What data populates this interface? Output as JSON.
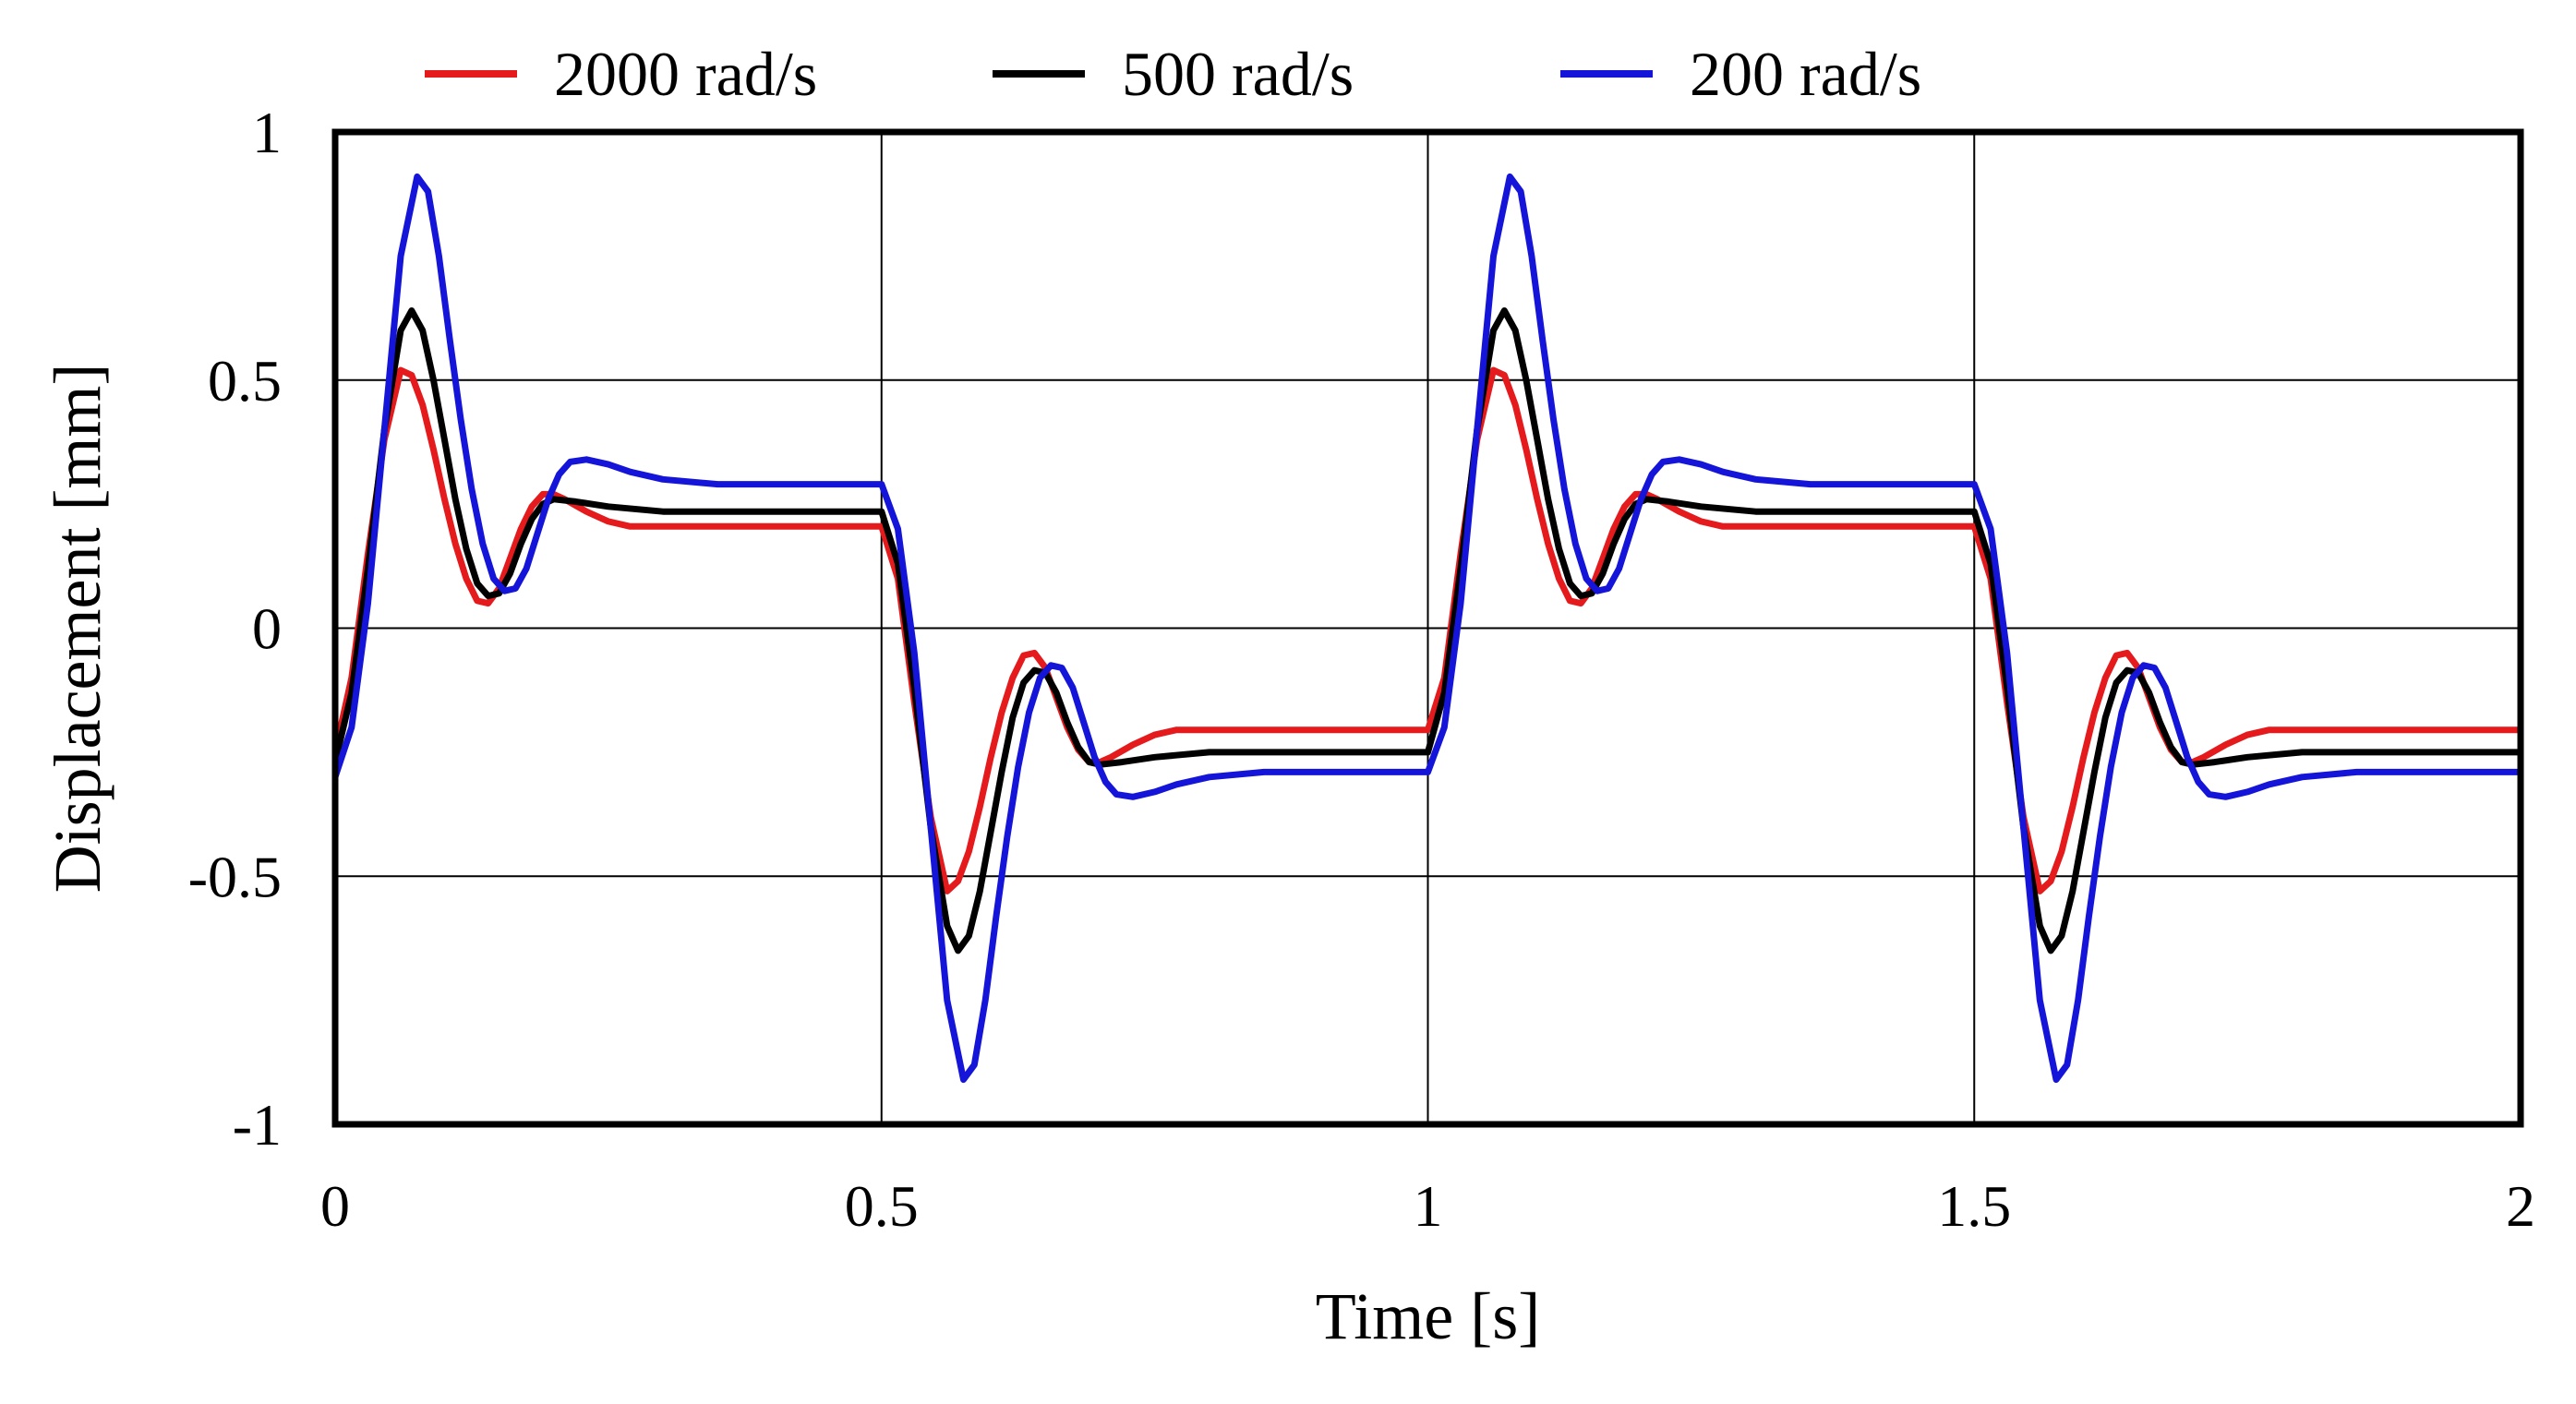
{
  "chart_data": {
    "type": "line",
    "xlabel": "Time [s]",
    "ylabel": "Displacement [mm]",
    "xlim": [
      0,
      2
    ],
    "ylim": [
      -1,
      1
    ],
    "xticks": [
      "0",
      "0.5",
      "1",
      "1.5",
      "2"
    ],
    "yticks": [
      "1",
      "0.5",
      "0",
      "-0.5",
      "-1"
    ],
    "grid": true,
    "legend": "top",
    "series": [
      {
        "name": "2000 rad/s",
        "color": "#e41a1c",
        "points": [
          [
            0,
            -0.25
          ],
          [
            0.015,
            -0.1
          ],
          [
            0.03,
            0.15
          ],
          [
            0.045,
            0.38
          ],
          [
            0.06,
            0.52
          ],
          [
            0.07,
            0.51
          ],
          [
            0.08,
            0.45
          ],
          [
            0.09,
            0.36
          ],
          [
            0.1,
            0.26
          ],
          [
            0.11,
            0.17
          ],
          [
            0.12,
            0.1
          ],
          [
            0.13,
            0.055
          ],
          [
            0.14,
            0.05
          ],
          [
            0.15,
            0.08
          ],
          [
            0.16,
            0.14
          ],
          [
            0.17,
            0.2
          ],
          [
            0.18,
            0.245
          ],
          [
            0.19,
            0.27
          ],
          [
            0.2,
            0.27
          ],
          [
            0.21,
            0.26
          ],
          [
            0.23,
            0.235
          ],
          [
            0.25,
            0.215
          ],
          [
            0.27,
            0.205
          ],
          [
            0.3,
            0.205
          ],
          [
            0.5,
            0.205
          ],
          [
            0.515,
            0.1
          ],
          [
            0.53,
            -0.15
          ],
          [
            0.545,
            -0.38
          ],
          [
            0.56,
            -0.53
          ],
          [
            0.57,
            -0.51
          ],
          [
            0.58,
            -0.45
          ],
          [
            0.59,
            -0.36
          ],
          [
            0.6,
            -0.26
          ],
          [
            0.61,
            -0.17
          ],
          [
            0.62,
            -0.1
          ],
          [
            0.63,
            -0.055
          ],
          [
            0.64,
            -0.05
          ],
          [
            0.65,
            -0.08
          ],
          [
            0.66,
            -0.14
          ],
          [
            0.67,
            -0.2
          ],
          [
            0.68,
            -0.245
          ],
          [
            0.69,
            -0.27
          ],
          [
            0.7,
            -0.27
          ],
          [
            0.71,
            -0.26
          ],
          [
            0.73,
            -0.235
          ],
          [
            0.75,
            -0.215
          ],
          [
            0.77,
            -0.205
          ],
          [
            0.8,
            -0.205
          ],
          [
            1.0,
            -0.205
          ],
          [
            1.015,
            -0.1
          ],
          [
            1.03,
            0.15
          ],
          [
            1.045,
            0.38
          ],
          [
            1.06,
            0.52
          ],
          [
            1.07,
            0.51
          ],
          [
            1.08,
            0.45
          ],
          [
            1.09,
            0.36
          ],
          [
            1.1,
            0.26
          ],
          [
            1.11,
            0.17
          ],
          [
            1.12,
            0.1
          ],
          [
            1.13,
            0.055
          ],
          [
            1.14,
            0.05
          ],
          [
            1.15,
            0.08
          ],
          [
            1.16,
            0.14
          ],
          [
            1.17,
            0.2
          ],
          [
            1.18,
            0.245
          ],
          [
            1.19,
            0.27
          ],
          [
            1.2,
            0.27
          ],
          [
            1.21,
            0.26
          ],
          [
            1.23,
            0.235
          ],
          [
            1.25,
            0.215
          ],
          [
            1.27,
            0.205
          ],
          [
            1.3,
            0.205
          ],
          [
            1.5,
            0.205
          ],
          [
            1.515,
            0.1
          ],
          [
            1.53,
            -0.15
          ],
          [
            1.545,
            -0.38
          ],
          [
            1.56,
            -0.53
          ],
          [
            1.57,
            -0.51
          ],
          [
            1.58,
            -0.45
          ],
          [
            1.59,
            -0.36
          ],
          [
            1.6,
            -0.26
          ],
          [
            1.61,
            -0.17
          ],
          [
            1.62,
            -0.1
          ],
          [
            1.63,
            -0.055
          ],
          [
            1.64,
            -0.05
          ],
          [
            1.65,
            -0.08
          ],
          [
            1.66,
            -0.14
          ],
          [
            1.67,
            -0.2
          ],
          [
            1.68,
            -0.245
          ],
          [
            1.69,
            -0.27
          ],
          [
            1.7,
            -0.27
          ],
          [
            1.71,
            -0.26
          ],
          [
            1.73,
            -0.235
          ],
          [
            1.75,
            -0.215
          ],
          [
            1.77,
            -0.205
          ],
          [
            1.8,
            -0.205
          ],
          [
            2.0,
            -0.205
          ]
        ]
      },
      {
        "name": "500 rad/s",
        "color": "#000000",
        "points": [
          [
            0,
            -0.27
          ],
          [
            0.015,
            -0.13
          ],
          [
            0.03,
            0.12
          ],
          [
            0.045,
            0.4
          ],
          [
            0.06,
            0.6
          ],
          [
            0.07,
            0.64
          ],
          [
            0.08,
            0.6
          ],
          [
            0.09,
            0.5
          ],
          [
            0.1,
            0.38
          ],
          [
            0.11,
            0.26
          ],
          [
            0.12,
            0.16
          ],
          [
            0.13,
            0.09
          ],
          [
            0.14,
            0.065
          ],
          [
            0.15,
            0.07
          ],
          [
            0.16,
            0.11
          ],
          [
            0.17,
            0.17
          ],
          [
            0.18,
            0.22
          ],
          [
            0.19,
            0.25
          ],
          [
            0.2,
            0.26
          ],
          [
            0.22,
            0.255
          ],
          [
            0.25,
            0.245
          ],
          [
            0.3,
            0.235
          ],
          [
            0.5,
            0.235
          ],
          [
            0.515,
            0.13
          ],
          [
            0.53,
            -0.12
          ],
          [
            0.545,
            -0.4
          ],
          [
            0.56,
            -0.6
          ],
          [
            0.57,
            -0.65
          ],
          [
            0.58,
            -0.62
          ],
          [
            0.59,
            -0.53
          ],
          [
            0.6,
            -0.41
          ],
          [
            0.61,
            -0.29
          ],
          [
            0.62,
            -0.18
          ],
          [
            0.63,
            -0.11
          ],
          [
            0.64,
            -0.085
          ],
          [
            0.65,
            -0.09
          ],
          [
            0.66,
            -0.13
          ],
          [
            0.67,
            -0.19
          ],
          [
            0.68,
            -0.24
          ],
          [
            0.69,
            -0.27
          ],
          [
            0.7,
            -0.275
          ],
          [
            0.72,
            -0.27
          ],
          [
            0.75,
            -0.26
          ],
          [
            0.8,
            -0.25
          ],
          [
            1.0,
            -0.25
          ],
          [
            1.015,
            -0.13
          ],
          [
            1.03,
            0.12
          ],
          [
            1.045,
            0.4
          ],
          [
            1.06,
            0.6
          ],
          [
            1.07,
            0.64
          ],
          [
            1.08,
            0.6
          ],
          [
            1.09,
            0.5
          ],
          [
            1.1,
            0.38
          ],
          [
            1.11,
            0.26
          ],
          [
            1.12,
            0.16
          ],
          [
            1.13,
            0.09
          ],
          [
            1.14,
            0.065
          ],
          [
            1.15,
            0.07
          ],
          [
            1.16,
            0.11
          ],
          [
            1.17,
            0.17
          ],
          [
            1.18,
            0.22
          ],
          [
            1.19,
            0.25
          ],
          [
            1.2,
            0.26
          ],
          [
            1.22,
            0.255
          ],
          [
            1.25,
            0.245
          ],
          [
            1.3,
            0.235
          ],
          [
            1.5,
            0.235
          ],
          [
            1.515,
            0.13
          ],
          [
            1.53,
            -0.12
          ],
          [
            1.545,
            -0.4
          ],
          [
            1.56,
            -0.6
          ],
          [
            1.57,
            -0.65
          ],
          [
            1.58,
            -0.62
          ],
          [
            1.59,
            -0.53
          ],
          [
            1.6,
            -0.41
          ],
          [
            1.61,
            -0.29
          ],
          [
            1.62,
            -0.18
          ],
          [
            1.63,
            -0.11
          ],
          [
            1.64,
            -0.085
          ],
          [
            1.65,
            -0.09
          ],
          [
            1.66,
            -0.13
          ],
          [
            1.67,
            -0.19
          ],
          [
            1.68,
            -0.24
          ],
          [
            1.69,
            -0.27
          ],
          [
            1.7,
            -0.275
          ],
          [
            1.72,
            -0.27
          ],
          [
            1.75,
            -0.26
          ],
          [
            1.8,
            -0.25
          ],
          [
            2.0,
            -0.25
          ]
        ]
      },
      {
        "name": "200 rad/s",
        "color": "#1515d9",
        "points": [
          [
            0,
            -0.3
          ],
          [
            0.015,
            -0.2
          ],
          [
            0.03,
            0.05
          ],
          [
            0.045,
            0.4
          ],
          [
            0.06,
            0.75
          ],
          [
            0.075,
            0.91
          ],
          [
            0.085,
            0.88
          ],
          [
            0.095,
            0.75
          ],
          [
            0.105,
            0.58
          ],
          [
            0.115,
            0.42
          ],
          [
            0.125,
            0.28
          ],
          [
            0.135,
            0.17
          ],
          [
            0.145,
            0.1
          ],
          [
            0.155,
            0.075
          ],
          [
            0.165,
            0.08
          ],
          [
            0.175,
            0.12
          ],
          [
            0.185,
            0.19
          ],
          [
            0.195,
            0.26
          ],
          [
            0.205,
            0.31
          ],
          [
            0.215,
            0.335
          ],
          [
            0.23,
            0.34
          ],
          [
            0.25,
            0.33
          ],
          [
            0.27,
            0.315
          ],
          [
            0.3,
            0.3
          ],
          [
            0.35,
            0.29
          ],
          [
            0.5,
            0.29
          ],
          [
            0.515,
            0.2
          ],
          [
            0.53,
            -0.05
          ],
          [
            0.545,
            -0.4
          ],
          [
            0.56,
            -0.75
          ],
          [
            0.575,
            -0.91
          ],
          [
            0.585,
            -0.88
          ],
          [
            0.595,
            -0.75
          ],
          [
            0.605,
            -0.58
          ],
          [
            0.615,
            -0.42
          ],
          [
            0.625,
            -0.28
          ],
          [
            0.635,
            -0.17
          ],
          [
            0.645,
            -0.1
          ],
          [
            0.655,
            -0.075
          ],
          [
            0.665,
            -0.08
          ],
          [
            0.675,
            -0.12
          ],
          [
            0.685,
            -0.19
          ],
          [
            0.695,
            -0.26
          ],
          [
            0.705,
            -0.31
          ],
          [
            0.715,
            -0.335
          ],
          [
            0.73,
            -0.34
          ],
          [
            0.75,
            -0.33
          ],
          [
            0.77,
            -0.315
          ],
          [
            0.8,
            -0.3
          ],
          [
            0.85,
            -0.29
          ],
          [
            1.0,
            -0.29
          ],
          [
            1.015,
            -0.2
          ],
          [
            1.03,
            0.05
          ],
          [
            1.045,
            0.4
          ],
          [
            1.06,
            0.75
          ],
          [
            1.075,
            0.91
          ],
          [
            1.085,
            0.88
          ],
          [
            1.095,
            0.75
          ],
          [
            1.105,
            0.58
          ],
          [
            1.115,
            0.42
          ],
          [
            1.125,
            0.28
          ],
          [
            1.135,
            0.17
          ],
          [
            1.145,
            0.1
          ],
          [
            1.155,
            0.075
          ],
          [
            1.165,
            0.08
          ],
          [
            1.175,
            0.12
          ],
          [
            1.185,
            0.19
          ],
          [
            1.195,
            0.26
          ],
          [
            1.205,
            0.31
          ],
          [
            1.215,
            0.335
          ],
          [
            1.23,
            0.34
          ],
          [
            1.25,
            0.33
          ],
          [
            1.27,
            0.315
          ],
          [
            1.3,
            0.3
          ],
          [
            1.35,
            0.29
          ],
          [
            1.5,
            0.29
          ],
          [
            1.515,
            0.2
          ],
          [
            1.53,
            -0.05
          ],
          [
            1.545,
            -0.4
          ],
          [
            1.56,
            -0.75
          ],
          [
            1.575,
            -0.91
          ],
          [
            1.585,
            -0.88
          ],
          [
            1.595,
            -0.75
          ],
          [
            1.605,
            -0.58
          ],
          [
            1.615,
            -0.42
          ],
          [
            1.625,
            -0.28
          ],
          [
            1.635,
            -0.17
          ],
          [
            1.645,
            -0.1
          ],
          [
            1.655,
            -0.075
          ],
          [
            1.665,
            -0.08
          ],
          [
            1.675,
            -0.12
          ],
          [
            1.685,
            -0.19
          ],
          [
            1.695,
            -0.26
          ],
          [
            1.705,
            -0.31
          ],
          [
            1.715,
            -0.335
          ],
          [
            1.73,
            -0.34
          ],
          [
            1.75,
            -0.33
          ],
          [
            1.77,
            -0.315
          ],
          [
            1.8,
            -0.3
          ],
          [
            1.85,
            -0.29
          ],
          [
            2.0,
            -0.29
          ]
        ]
      }
    ]
  }
}
